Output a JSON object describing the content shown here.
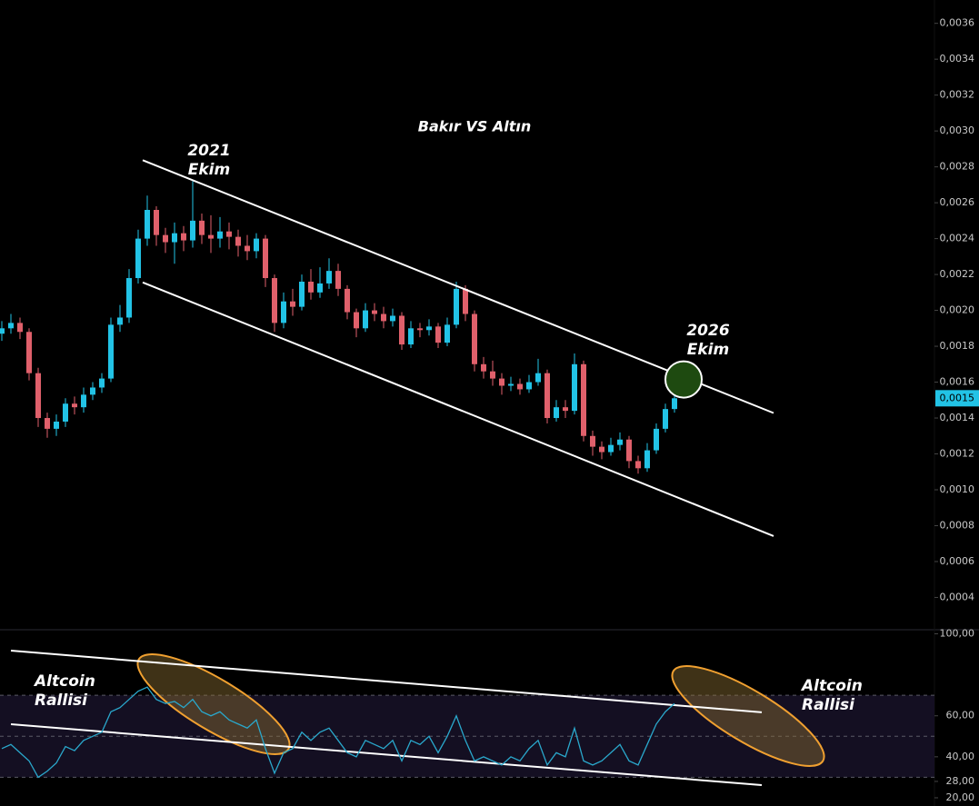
{
  "chart_data": [
    {
      "type": "candlestick",
      "title": "Bakır VS Altın",
      "up_color": "#22c3e6",
      "down_color": "#e0606b",
      "x": [
        0,
        1,
        2,
        3,
        4,
        5,
        6,
        7,
        8,
        9,
        10,
        11,
        12,
        13,
        14,
        15,
        16,
        17,
        18,
        19,
        20,
        21,
        22,
        23,
        24,
        25,
        26,
        27,
        28,
        29,
        30,
        31,
        32,
        33,
        34,
        35,
        36,
        37,
        38,
        39,
        40,
        41,
        42,
        43,
        44,
        45,
        46,
        47,
        48,
        49,
        50,
        51,
        52,
        53,
        54,
        55,
        56,
        57,
        58,
        59,
        60,
        61,
        62,
        63,
        64,
        65,
        66,
        67,
        68,
        69,
        70,
        71,
        72,
        73,
        74
      ],
      "open": [
        0.00187,
        0.0019,
        0.00193,
        0.00188,
        0.00165,
        0.0014,
        0.00134,
        0.00138,
        0.00148,
        0.00146,
        0.00153,
        0.00157,
        0.00162,
        0.00192,
        0.00196,
        0.00218,
        0.0024,
        0.00256,
        0.00242,
        0.00238,
        0.00243,
        0.00239,
        0.0025,
        0.00242,
        0.0024,
        0.00244,
        0.00241,
        0.00236,
        0.00233,
        0.0024,
        0.00218,
        0.00193,
        0.00205,
        0.00202,
        0.00216,
        0.0021,
        0.00215,
        0.00222,
        0.00212,
        0.00199,
        0.0019,
        0.002,
        0.00198,
        0.00194,
        0.00197,
        0.00181,
        0.0019,
        0.00189,
        0.00191,
        0.00182,
        0.00192,
        0.00212,
        0.00198,
        0.0017,
        0.00166,
        0.00162,
        0.00158,
        0.00159,
        0.00156,
        0.0016,
        0.00165,
        0.0014,
        0.00146,
        0.00144,
        0.0017,
        0.0013,
        0.00124,
        0.00121,
        0.00125,
        0.00128,
        0.00116,
        0.00112,
        0.00122,
        0.00134,
        0.00145
      ],
      "high": [
        0.00194,
        0.00198,
        0.00196,
        0.0019,
        0.00168,
        0.00143,
        0.00142,
        0.00151,
        0.00152,
        0.00157,
        0.0016,
        0.00165,
        0.00196,
        0.00203,
        0.00223,
        0.00245,
        0.00264,
        0.00258,
        0.00246,
        0.00249,
        0.00247,
        0.00272,
        0.00254,
        0.00253,
        0.00252,
        0.00249,
        0.00245,
        0.00242,
        0.00243,
        0.00242,
        0.0022,
        0.0021,
        0.00212,
        0.0022,
        0.00223,
        0.00224,
        0.00229,
        0.00226,
        0.00214,
        0.00201,
        0.00204,
        0.00204,
        0.00202,
        0.00201,
        0.00199,
        0.00194,
        0.00193,
        0.00195,
        0.00193,
        0.00196,
        0.00216,
        0.00214,
        0.002,
        0.00174,
        0.00172,
        0.00165,
        0.00163,
        0.00162,
        0.00164,
        0.00173,
        0.00167,
        0.0015,
        0.0015,
        0.00176,
        0.00172,
        0.00133,
        0.00127,
        0.00129,
        0.00132,
        0.0013,
        0.00119,
        0.00126,
        0.00137,
        0.00148,
        0.00154
      ],
      "low": [
        0.00183,
        0.00187,
        0.00184,
        0.00161,
        0.00135,
        0.00129,
        0.0013,
        0.00135,
        0.00142,
        0.00143,
        0.0015,
        0.00154,
        0.0016,
        0.00188,
        0.00193,
        0.00215,
        0.00236,
        0.00236,
        0.00232,
        0.00226,
        0.00233,
        0.00235,
        0.00237,
        0.00232,
        0.00235,
        0.00234,
        0.0023,
        0.00228,
        0.00229,
        0.00213,
        0.00188,
        0.0019,
        0.00197,
        0.002,
        0.00206,
        0.00207,
        0.00212,
        0.00208,
        0.00195,
        0.00185,
        0.00188,
        0.00194,
        0.0019,
        0.00191,
        0.00178,
        0.00179,
        0.00185,
        0.00186,
        0.00179,
        0.0018,
        0.0019,
        0.00194,
        0.00166,
        0.00162,
        0.00158,
        0.00153,
        0.00155,
        0.00153,
        0.00154,
        0.00158,
        0.00137,
        0.00138,
        0.0014,
        0.00142,
        0.00127,
        0.00119,
        0.00117,
        0.00119,
        0.00122,
        0.00112,
        0.00109,
        0.0011,
        0.0012,
        0.00132,
        0.00143
      ],
      "close": [
        0.0019,
        0.00193,
        0.00188,
        0.00165,
        0.0014,
        0.00134,
        0.00138,
        0.00148,
        0.00146,
        0.00153,
        0.00157,
        0.00162,
        0.00192,
        0.00196,
        0.00218,
        0.0024,
        0.00256,
        0.00242,
        0.00238,
        0.00243,
        0.00239,
        0.0025,
        0.00242,
        0.0024,
        0.00244,
        0.00241,
        0.00236,
        0.00233,
        0.0024,
        0.00218,
        0.00193,
        0.00205,
        0.00202,
        0.00216,
        0.0021,
        0.00215,
        0.00222,
        0.00212,
        0.00199,
        0.0019,
        0.002,
        0.00198,
        0.00194,
        0.00197,
        0.00181,
        0.0019,
        0.00189,
        0.00191,
        0.00182,
        0.00192,
        0.00212,
        0.00198,
        0.0017,
        0.00166,
        0.00162,
        0.00158,
        0.00159,
        0.00156,
        0.0016,
        0.00165,
        0.0014,
        0.00146,
        0.00144,
        0.0017,
        0.0013,
        0.00124,
        0.00121,
        0.00125,
        0.00128,
        0.00116,
        0.00112,
        0.00122,
        0.00134,
        0.00145,
        0.00151
      ],
      "xlim": [
        -0.2,
        102.6
      ],
      "ylim": [
        0.00022,
        0.00373
      ],
      "yticks": [
        {
          "value": 0.0004,
          "label": "0,0004"
        },
        {
          "value": 0.0006,
          "label": "0,0006"
        },
        {
          "value": 0.0008,
          "label": "0,0008"
        },
        {
          "value": 0.001,
          "label": "0,0010"
        },
        {
          "value": 0.0012,
          "label": "0,0012"
        },
        {
          "value": 0.0014,
          "label": "0,0014"
        },
        {
          "value": 0.0016,
          "label": "0,0016"
        },
        {
          "value": 0.0018,
          "label": "0,0018"
        },
        {
          "value": 0.002,
          "label": "0,0020"
        },
        {
          "value": 0.0022,
          "label": "0,0022"
        },
        {
          "value": 0.0024,
          "label": "0,0024"
        },
        {
          "value": 0.0026,
          "label": "0,0026"
        },
        {
          "value": 0.0028,
          "label": "0,0028"
        },
        {
          "value": 0.003,
          "label": "0,0030"
        },
        {
          "value": 0.0032,
          "label": "0,0032"
        },
        {
          "value": 0.0034,
          "label": "0,0034"
        },
        {
          "value": 0.0036,
          "label": "0,0036"
        }
      ],
      "last_price": {
        "value": 0.00151,
        "label": "0,0015"
      },
      "trendlines": [
        {
          "x": [
            15.5,
            84.9
          ],
          "y": [
            0.002837,
            0.001428
          ]
        },
        {
          "x": [
            15.5,
            84.9
          ],
          "y": [
            0.002156,
            0.000742
          ]
        }
      ],
      "highlight": {
        "x": 75,
        "y": 0.001615
      },
      "annotations": [
        {
          "lines": [
            "2021",
            "Ekim"
          ]
        },
        {
          "lines": [
            "2026",
            "Ekim"
          ]
        }
      ]
    },
    {
      "type": "line",
      "color": "#2aa8cc",
      "x": [
        0,
        1,
        2,
        3,
        4,
        5,
        6,
        7,
        8,
        9,
        10,
        11,
        12,
        13,
        14,
        15,
        16,
        17,
        18,
        19,
        20,
        21,
        22,
        23,
        24,
        25,
        26,
        27,
        28,
        29,
        30,
        31,
        32,
        33,
        34,
        35,
        36,
        37,
        38,
        39,
        40,
        41,
        42,
        43,
        44,
        45,
        46,
        47,
        48,
        49,
        50,
        51,
        52,
        53,
        54,
        55,
        56,
        57,
        58,
        59,
        60,
        61,
        62,
        63,
        64,
        65,
        66,
        67,
        68,
        69,
        70,
        71,
        72,
        73,
        74
      ],
      "values": [
        44,
        46,
        42,
        38,
        30,
        33,
        37,
        45,
        43,
        48,
        50,
        52,
        62,
        64,
        68,
        72,
        74,
        68,
        66,
        67,
        64,
        68,
        62,
        60,
        62,
        58,
        56,
        54,
        58,
        44,
        32,
        42,
        44,
        52,
        48,
        52,
        54,
        48,
        42,
        40,
        48,
        46,
        44,
        48,
        38,
        48,
        46,
        50,
        42,
        50,
        60,
        48,
        38,
        40,
        38,
        36,
        40,
        38,
        44,
        48,
        36,
        42,
        40,
        54,
        38,
        36,
        38,
        42,
        46,
        38,
        36,
        46,
        56,
        62,
        66
      ],
      "xlim": [
        -0.2,
        102.6
      ],
      "ylim": [
        16,
        102
      ],
      "yticks": [
        {
          "value": 100,
          "label": "100,00"
        },
        {
          "value": 60,
          "label": "60,00"
        },
        {
          "value": 40,
          "label": "40,00"
        },
        {
          "value": 28,
          "label": "28,00"
        },
        {
          "value": 20,
          "label": "20,00"
        }
      ],
      "levels": [
        70,
        50,
        30
      ],
      "trendlines": [
        {
          "x": [
            1,
            83.6
          ],
          "y": [
            91.8,
            61.7
          ]
        },
        {
          "x": [
            1,
            83.6
          ],
          "y": [
            55.9,
            26.2
          ]
        }
      ],
      "annotations": [
        {
          "lines": [
            "Altcoin",
            "Rallisi"
          ]
        },
        {
          "lines": [
            "Altcoin",
            "Rallisi"
          ]
        }
      ]
    }
  ]
}
